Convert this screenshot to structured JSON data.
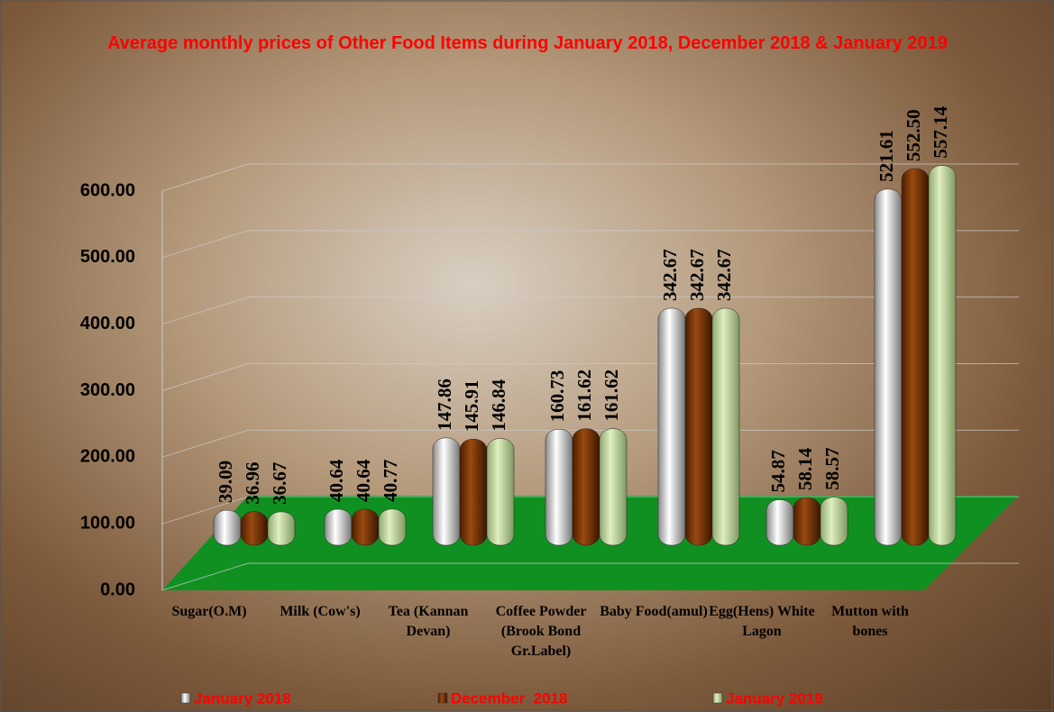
{
  "chart_data": {
    "type": "bar",
    "title": "Average monthly prices of Other Food Items during January 2018, December 2018 & January 2019",
    "categories": [
      "Sugar(O.M)",
      "Milk (Cow's)",
      "Tea (Kannan Devan)",
      "Coffee Powder (Brook Bond Gr.Label)",
      "Baby Food(amul)",
      "Egg(Hens) White Lagon",
      "Mutton with bones"
    ],
    "series": [
      {
        "name": "January 2018",
        "color": "#e8e8e8",
        "values": [
          39.09,
          40.64,
          147.86,
          160.73,
          342.67,
          54.87,
          521.61
        ],
        "value_labels": [
          "39.09",
          "40.64",
          "147.86",
          "160.73",
          "342.67",
          "54.87",
          "521.61"
        ]
      },
      {
        "name": "December  2018",
        "color": "#7a3300",
        "values": [
          36.96,
          40.64,
          145.91,
          161.62,
          342.67,
          58.14,
          552.5
        ],
        "value_labels": [
          "36.96",
          "40.64",
          "145.91",
          "161.62",
          "342.67",
          "58.14",
          "552.50"
        ]
      },
      {
        "name": "January 2019",
        "color": "#c4d9a0",
        "values": [
          36.67,
          40.77,
          146.84,
          161.62,
          342.67,
          58.57,
          557.14
        ],
        "value_labels": [
          "36.67",
          "40.77",
          "146.84",
          "161.62",
          "342.67",
          "58.57",
          "557.14"
        ]
      }
    ],
    "ylim": [
      0,
      600
    ],
    "yticks": [
      {
        "value": 0,
        "label": "0.00"
      },
      {
        "value": 100,
        "label": "100.00"
      },
      {
        "value": 200,
        "label": "200.00"
      },
      {
        "value": 300,
        "label": "300.00"
      },
      {
        "value": 400,
        "label": "400.00"
      },
      {
        "value": 500,
        "label": "500.00"
      },
      {
        "value": 600,
        "label": "600.00"
      }
    ],
    "grid": true,
    "legend": "bottom"
  }
}
